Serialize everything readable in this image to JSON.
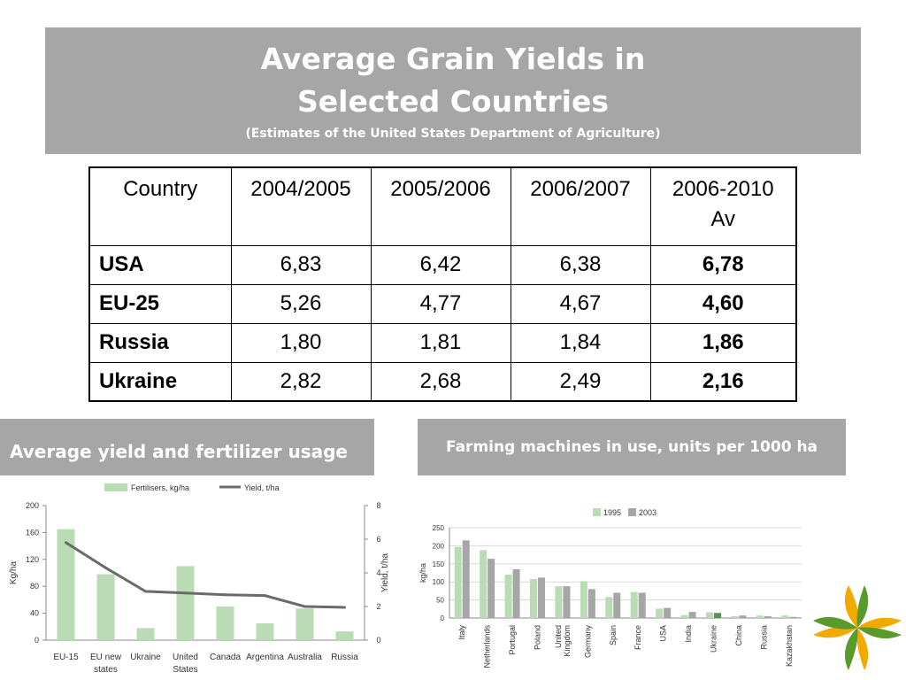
{
  "title": {
    "line1": "Average Grain Yields in",
    "line2": "Selected Countries",
    "subtitle": "(Estimates of the United States Department of Agriculture)"
  },
  "table": {
    "headers": [
      "Country",
      "2004/2005",
      "2005/2006",
      "2006/2007",
      "2006-2010",
      "Av"
    ],
    "rows": [
      {
        "country": "USA",
        "v1": "6,83",
        "v2": "6,42",
        "v3": "6,38",
        "avg": "6,78"
      },
      {
        "country": "EU-25",
        "v1": "5,26",
        "v2": "4,77",
        "v3": "4,67",
        "avg": "4,60"
      },
      {
        "country": "Russia",
        "v1": "1,80",
        "v2": "1,81",
        "v3": "1,84",
        "avg": "1,86"
      },
      {
        "country": "Ukraine",
        "v1": "2,82",
        "v2": "2,68",
        "v3": "2,49",
        "avg": "2,16"
      }
    ]
  },
  "panels": {
    "left_title": "Average yield and fertilizer usage",
    "right_title": "Farming machines in use, units per 1000 ha"
  },
  "colors": {
    "panel_bg": "#a6a6a6",
    "fert_bar": "#b9dcb4",
    "yield_line": "#6b6b6b",
    "bar_1995": "#b9dcb4",
    "bar_2003": "#a6a6a6"
  },
  "chart_data": [
    {
      "type": "bar",
      "categories": [
        "EU-15",
        "EU new states",
        "Ukraine",
        "United States",
        "Canada",
        "Argentina",
        "Australia",
        "Russia"
      ],
      "category_lines": [
        [
          "EU-15"
        ],
        [
          "EU new",
          "states"
        ],
        [
          "Ukraine"
        ],
        [
          "United",
          "States"
        ],
        [
          "Canada"
        ],
        [
          "Argentina"
        ],
        [
          "Australia"
        ],
        [
          "Russia"
        ]
      ],
      "series": [
        {
          "name": "Fertilisers, kg/ha",
          "type": "bar",
          "axis": "left",
          "values": [
            165,
            98,
            18,
            110,
            50,
            25,
            47,
            13
          ]
        },
        {
          "name": "Yield, t/ha",
          "type": "line",
          "axis": "right",
          "values": [
            5.8,
            4.3,
            2.9,
            2.8,
            2.7,
            2.65,
            2.0,
            1.95
          ]
        }
      ],
      "ylabel": "Kg/ha",
      "y2label": "Yield, t/ha",
      "ylim": [
        0,
        200
      ],
      "y2lim": [
        0,
        8
      ],
      "yticks": [
        0,
        40,
        80,
        120,
        160,
        200
      ],
      "y2ticks": [
        0,
        2,
        4,
        6,
        8
      ],
      "legend": "top"
    },
    {
      "type": "bar",
      "categories": [
        "Italy",
        "Netherlands",
        "Portugal",
        "Poland",
        "United Kingdom",
        "Germany",
        "Spain",
        "France",
        "USA",
        "India",
        "Ukraine",
        "China",
        "Russia",
        "Kazakhstan"
      ],
      "category_lines": [
        [
          "Italy"
        ],
        [
          "Netherlands"
        ],
        [
          "Portugal"
        ],
        [
          "Poland"
        ],
        [
          "United",
          "Kingdom"
        ],
        [
          "Germany"
        ],
        [
          "Spain"
        ],
        [
          "France"
        ],
        [
          "USA"
        ],
        [
          "India"
        ],
        [
          "Ukraine"
        ],
        [
          "China"
        ],
        [
          "Russia"
        ],
        [
          "Kazakhstan"
        ]
      ],
      "series": [
        {
          "name": "1995",
          "values": [
            197,
            188,
            120,
            108,
            88,
            102,
            58,
            72,
            26,
            8,
            16,
            5,
            7,
            7
          ]
        },
        {
          "name": "2003",
          "values": [
            215,
            164,
            135,
            112,
            88,
            80,
            70,
            70,
            28,
            17,
            14,
            7,
            5,
            3
          ]
        }
      ],
      "ylabel": "kg/ha",
      "ylim": [
        0,
        250
      ],
      "yticks": [
        0,
        50,
        100,
        150,
        200,
        250
      ],
      "grid": true,
      "legend": "top"
    }
  ]
}
